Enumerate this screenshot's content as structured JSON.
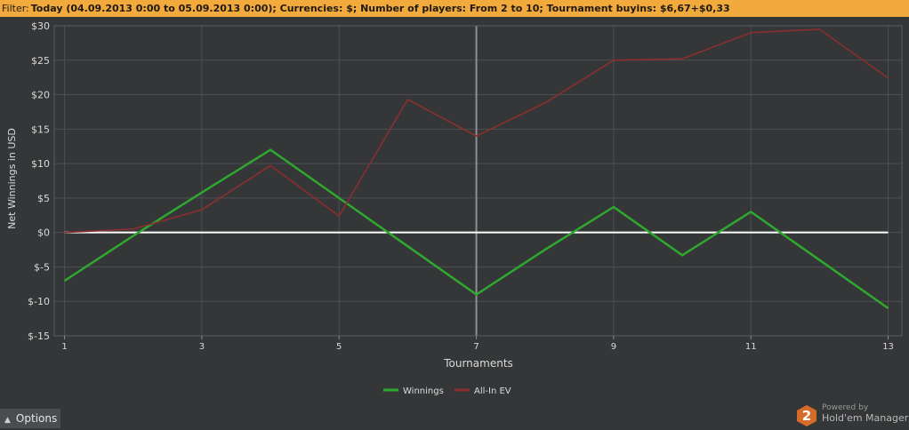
{
  "filter": {
    "label": "Filter:",
    "text": "Today (04.09.2013 0:00 to 05.09.2013 0:00); Currencies: $; Number of players: From 2 to 10; Tournament buyins: $6,67+$0,33"
  },
  "options_label": "Options",
  "brand": {
    "powered_by": "Powered by",
    "name": "Hold'em Manager"
  },
  "colors": {
    "background": "#343638",
    "filter_bar": "#f3aa3c",
    "grid": "#4c4f52",
    "zero_line": "#ffffff",
    "winnings": "#2fa82f",
    "allin_ev": "#8a2f2f"
  },
  "chart_data": {
    "type": "line",
    "xlabel": "Tournaments",
    "ylabel": "Net Winnings in USD",
    "x": [
      1,
      2,
      3,
      4,
      5,
      6,
      7,
      8,
      9,
      10,
      11,
      12,
      13
    ],
    "xticks": [
      1,
      3,
      5,
      7,
      9,
      11,
      13
    ],
    "xtick_labels": [
      "1",
      "3",
      "5",
      "7",
      "9",
      "11",
      "13"
    ],
    "xlim": [
      0.85,
      13.2
    ],
    "yticks": [
      30,
      25,
      20,
      15,
      10,
      5,
      0,
      -5,
      -10,
      -15
    ],
    "ytick_labels": [
      "$30",
      "$25",
      "$20",
      "$15",
      "$10",
      "$5",
      "$0",
      "$-5",
      "$-10",
      "$-15"
    ],
    "ylim": [
      -15,
      30
    ],
    "grid": true,
    "highlight_x": 7,
    "legend_position": "bottom-center",
    "series": [
      {
        "name": "Winnings",
        "color": "#2fa82f",
        "values": [
          -7,
          -0.5,
          5.8,
          12,
          5,
          -2,
          -9,
          -2.5,
          3.7,
          -3.3,
          3,
          -4,
          -11
        ]
      },
      {
        "name": "All-In EV",
        "color": "#8a2f2f",
        "values": [
          0,
          0.5,
          3.3,
          9.7,
          2.4,
          19.3,
          14,
          18.8,
          25,
          25.2,
          29,
          29.5,
          22.4
        ]
      }
    ]
  }
}
